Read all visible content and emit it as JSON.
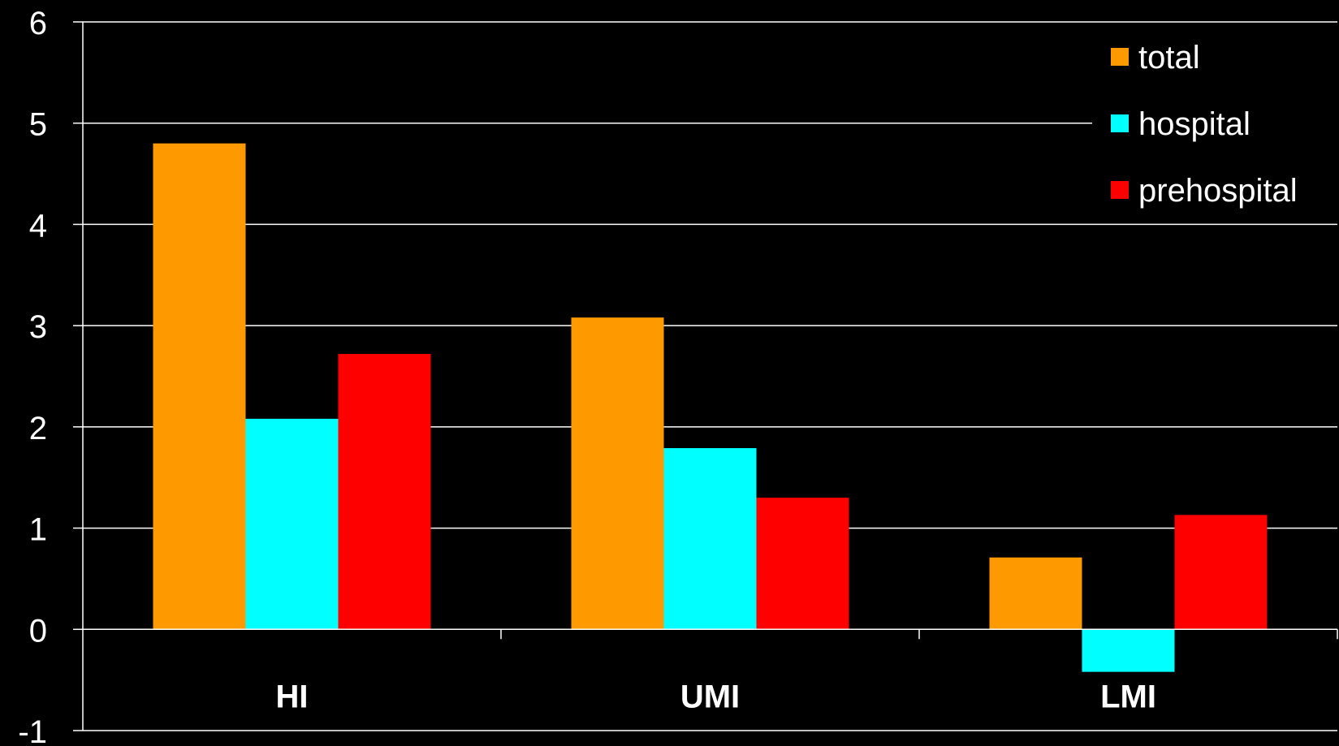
{
  "chart_data": {
    "type": "bar",
    "categories": [
      "HI",
      "UMI",
      "LMI"
    ],
    "series": [
      {
        "name": "total",
        "color": "#FF9900",
        "values": [
          4.8,
          3.08,
          0.71
        ]
      },
      {
        "name": "hospital",
        "color": "#00FFFF",
        "values": [
          2.08,
          1.79,
          -0.42
        ]
      },
      {
        "name": "prehospital",
        "color": "#FF0000",
        "values": [
          2.72,
          1.3,
          1.13
        ]
      }
    ],
    "yticks": [
      "-1",
      "0",
      "1",
      "2",
      "3",
      "4",
      "5",
      "6"
    ],
    "ylim": [
      -1,
      6
    ],
    "grid": true,
    "legend": "top-right",
    "background": "#000000",
    "foreground": "#FFFFFF"
  }
}
